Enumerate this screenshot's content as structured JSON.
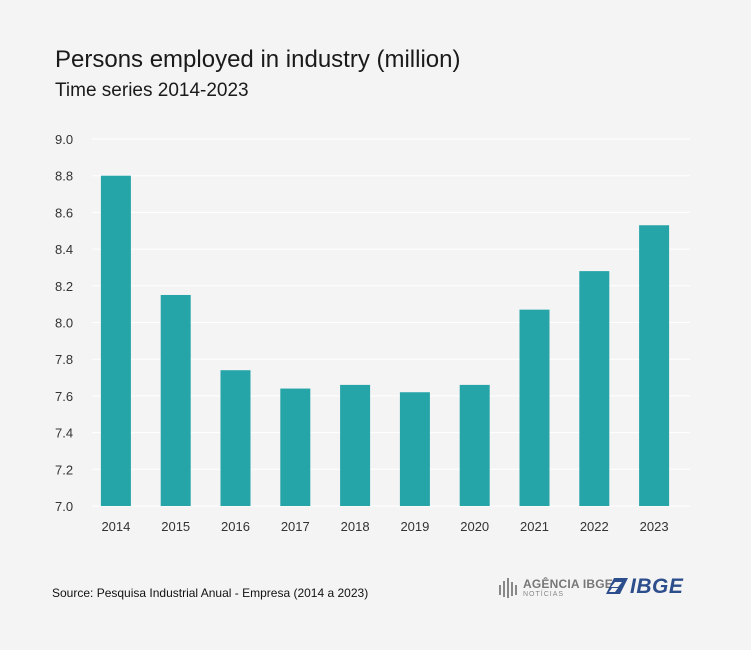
{
  "header": {
    "title": "Persons employed in industry (million)",
    "subtitle": "Time series 2014-2023"
  },
  "footer": {
    "source": "Source: Pesquisa Industrial Anual - Empresa (2014 a 2023)",
    "agencia_logo_text": "AGÊNCIA IBGE",
    "agencia_logo_sub": "NOTÍCIAS",
    "ibge_logo_text": "IBGE"
  },
  "colors": {
    "bar": "#26a5a9",
    "grid": "#ffffff",
    "tick_text": "#333333",
    "ibge_blue": "#2d4e8c"
  },
  "chart_data": {
    "type": "bar",
    "title": "Persons employed in industry (million)",
    "subtitle": "Time series 2014-2023",
    "categories": [
      "2014",
      "2015",
      "2016",
      "2017",
      "2018",
      "2019",
      "2020",
      "2021",
      "2022",
      "2023"
    ],
    "values": [
      8.8,
      8.15,
      7.74,
      7.64,
      7.66,
      7.62,
      7.66,
      8.07,
      8.28,
      8.53
    ],
    "ylim": [
      7.0,
      9.0
    ],
    "yticks": [
      "7.0",
      "7.2",
      "7.4",
      "7.6",
      "7.8",
      "8.0",
      "8.2",
      "8.4",
      "8.6",
      "8.8",
      "9.0"
    ],
    "grid": true,
    "xlabel": "",
    "ylabel": ""
  }
}
